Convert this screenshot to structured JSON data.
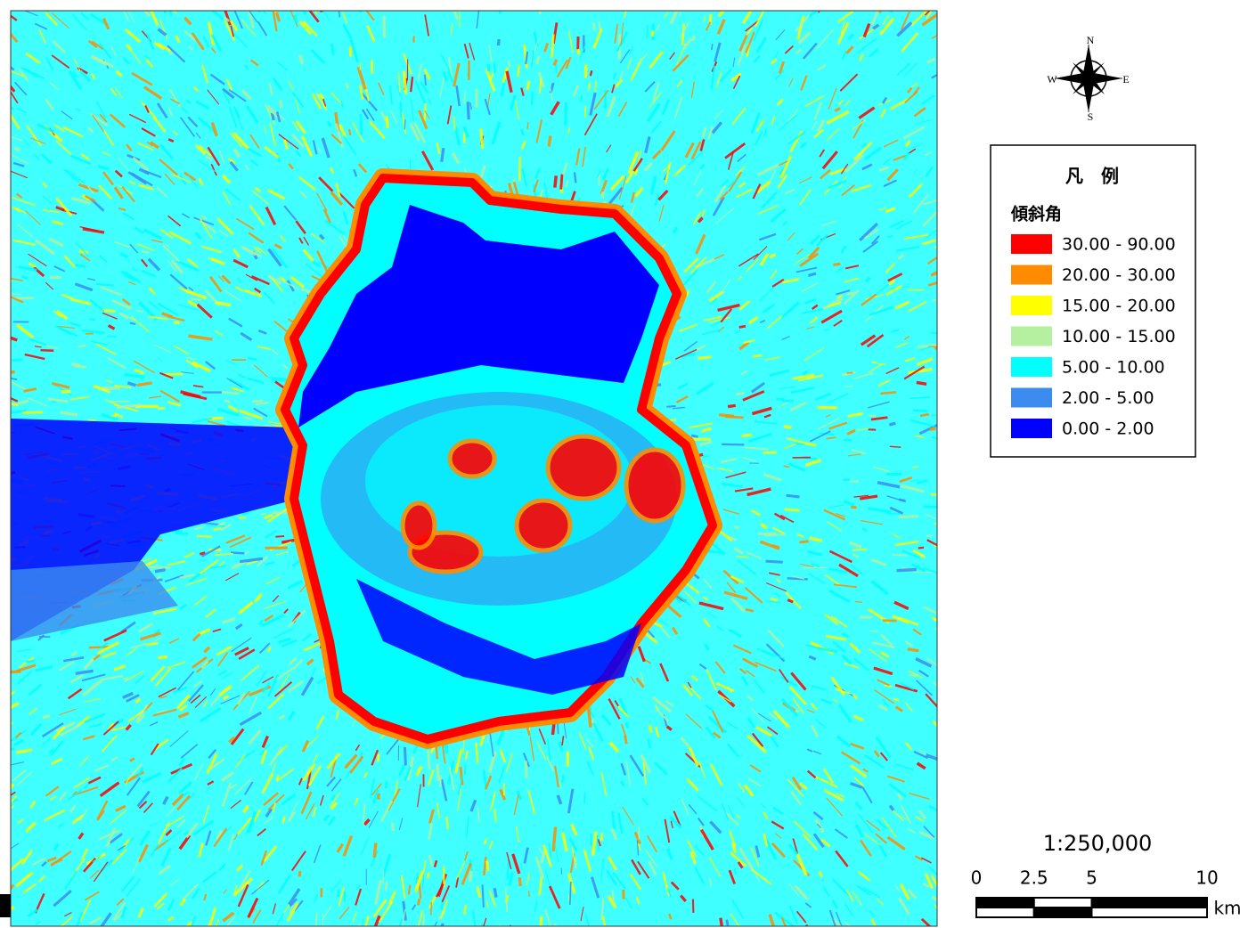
{
  "compass": {
    "north": "N",
    "east": "E",
    "south": "S",
    "west": "W"
  },
  "legend": {
    "title": "凡　例",
    "subtitle": "傾斜角",
    "items": [
      {
        "label": "30.00 - 90.00",
        "color": "#ff0000"
      },
      {
        "label": "20.00 - 30.00",
        "color": "#ff8c00"
      },
      {
        "label": "15.00 - 20.00",
        "color": "#ffff00"
      },
      {
        "label": "10.00 - 15.00",
        "color": "#b4f0a0"
      },
      {
        "label": "5.00 - 10.00",
        "color": "#00ffff"
      },
      {
        "label": "2.00 - 5.00",
        "color": "#3c8cf0"
      },
      {
        "label": "0.00 - 2.00",
        "color": "#0000ff"
      }
    ]
  },
  "scale": {
    "ratio": "1:250,000",
    "ticks": [
      0,
      2.5,
      5,
      10
    ],
    "unit": "km"
  }
}
